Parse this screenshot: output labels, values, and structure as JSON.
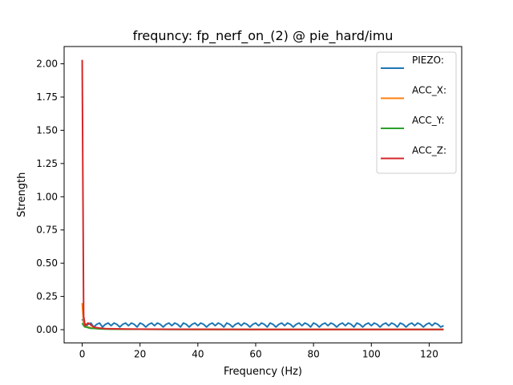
{
  "chart_data": {
    "type": "line",
    "title": "frequncy: fp_nerf_on_(2) @ pie_hard/imu",
    "xlabel": "Frequency (Hz)",
    "ylabel": "Strength",
    "xlim": [
      -6.25,
      131.25
    ],
    "ylim": [
      -0.1,
      2.13
    ],
    "xticks": [
      0,
      20,
      40,
      60,
      80,
      100,
      120
    ],
    "yticks": [
      0.0,
      0.25,
      0.5,
      0.75,
      1.0,
      1.25,
      1.5,
      1.75,
      2.0
    ],
    "xtick_labels": [
      "0",
      "20",
      "40",
      "60",
      "80",
      "100",
      "120"
    ],
    "ytick_labels": [
      "0.00",
      "0.25",
      "0.50",
      "0.75",
      "1.00",
      "1.25",
      "1.50",
      "1.75",
      "2.00"
    ],
    "grid": false,
    "legend_position": "top-right",
    "series": [
      {
        "name": "PIEZO:",
        "color": "#1f77b4",
        "x": [
          0,
          0.5,
          1,
          1.5,
          2,
          3,
          4,
          5,
          6,
          7,
          8,
          9,
          10,
          11,
          12,
          13,
          14,
          15,
          16,
          17,
          18,
          19,
          20,
          21,
          22,
          23,
          24,
          25,
          26,
          27,
          28,
          29,
          30,
          31,
          32,
          33,
          34,
          35,
          36,
          37,
          38,
          39,
          40,
          41,
          42,
          43,
          44,
          45,
          46,
          47,
          48,
          49,
          50,
          51,
          52,
          53,
          54,
          55,
          56,
          57,
          58,
          59,
          60,
          61,
          62,
          63,
          64,
          65,
          66,
          67,
          68,
          69,
          70,
          71,
          72,
          73,
          74,
          75,
          76,
          77,
          78,
          79,
          80,
          81,
          82,
          83,
          84,
          85,
          86,
          87,
          88,
          89,
          90,
          91,
          92,
          93,
          94,
          95,
          96,
          97,
          98,
          99,
          100,
          101,
          102,
          103,
          104,
          105,
          106,
          107,
          108,
          109,
          110,
          111,
          112,
          113,
          114,
          115,
          116,
          117,
          118,
          119,
          120,
          121,
          122,
          123,
          124,
          125
        ],
        "y": [
          0.08,
          0.06,
          0.04,
          0.03,
          0.04,
          0.05,
          0.02,
          0.04,
          0.05,
          0.02,
          0.04,
          0.05,
          0.03,
          0.05,
          0.04,
          0.02,
          0.04,
          0.05,
          0.03,
          0.05,
          0.04,
          0.02,
          0.05,
          0.04,
          0.02,
          0.04,
          0.05,
          0.03,
          0.05,
          0.04,
          0.02,
          0.04,
          0.05,
          0.03,
          0.05,
          0.04,
          0.02,
          0.05,
          0.04,
          0.02,
          0.04,
          0.05,
          0.03,
          0.05,
          0.04,
          0.02,
          0.04,
          0.05,
          0.03,
          0.05,
          0.04,
          0.02,
          0.05,
          0.04,
          0.02,
          0.04,
          0.05,
          0.03,
          0.05,
          0.04,
          0.02,
          0.04,
          0.05,
          0.03,
          0.05,
          0.04,
          0.02,
          0.05,
          0.04,
          0.02,
          0.04,
          0.05,
          0.03,
          0.05,
          0.04,
          0.02,
          0.04,
          0.05,
          0.03,
          0.05,
          0.04,
          0.02,
          0.05,
          0.04,
          0.02,
          0.04,
          0.05,
          0.03,
          0.05,
          0.04,
          0.02,
          0.04,
          0.05,
          0.03,
          0.05,
          0.04,
          0.02,
          0.05,
          0.04,
          0.02,
          0.04,
          0.05,
          0.03,
          0.05,
          0.04,
          0.02,
          0.04,
          0.05,
          0.03,
          0.05,
          0.04,
          0.02,
          0.05,
          0.04,
          0.02,
          0.04,
          0.05,
          0.03,
          0.05,
          0.04,
          0.02,
          0.04,
          0.05,
          0.03,
          0.05,
          0.04,
          0.02,
          0.03
        ]
      },
      {
        "name": "ACC_X:",
        "color": "#ff7f0e",
        "x": [
          0,
          0.5,
          1,
          1.5,
          2,
          3,
          4,
          5,
          6,
          8,
          10,
          15,
          20,
          30,
          40,
          60,
          80,
          100,
          125
        ],
        "y": [
          0.2,
          0.05,
          0.03,
          0.02,
          0.02,
          0.015,
          0.01,
          0.01,
          0.008,
          0.006,
          0.005,
          0.004,
          0.003,
          0.003,
          0.002,
          0.002,
          0.002,
          0.002,
          0.002
        ]
      },
      {
        "name": "ACC_Y:",
        "color": "#2ca02c",
        "x": [
          0,
          0.5,
          1,
          1.5,
          2,
          3,
          4,
          5,
          6,
          8,
          10,
          15,
          20,
          30,
          40,
          60,
          80,
          100,
          125
        ],
        "y": [
          0.05,
          0.03,
          0.02,
          0.02,
          0.015,
          0.01,
          0.01,
          0.008,
          0.006,
          0.005,
          0.004,
          0.003,
          0.003,
          0.002,
          0.002,
          0.002,
          0.002,
          0.002,
          0.002
        ]
      },
      {
        "name": "ACC_Z:",
        "color": "#d62728",
        "x": [
          0,
          0.5,
          1,
          1.5,
          2,
          2.5,
          3,
          4,
          5,
          6,
          7,
          8,
          10,
          12,
          15,
          20,
          30,
          40,
          60,
          80,
          100,
          125
        ],
        "y": [
          2.03,
          0.1,
          0.03,
          0.04,
          0.05,
          0.045,
          0.035,
          0.02,
          0.015,
          0.012,
          0.01,
          0.008,
          0.007,
          0.006,
          0.005,
          0.004,
          0.003,
          0.003,
          0.002,
          0.002,
          0.002,
          0.002
        ]
      }
    ]
  }
}
